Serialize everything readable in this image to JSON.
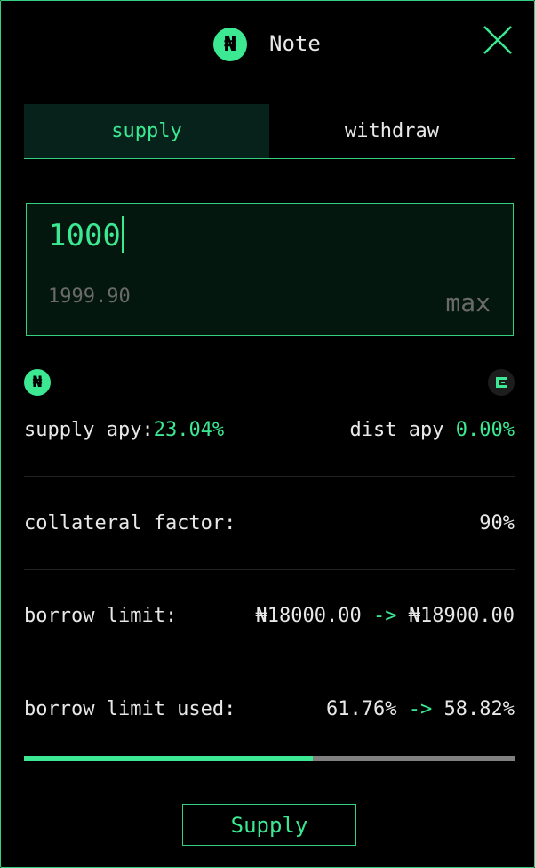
{
  "header": {
    "title": "Note",
    "token_symbol": "₦",
    "close_icon": "close-icon"
  },
  "tabs": [
    {
      "label": "supply",
      "active": true
    },
    {
      "label": "withdraw",
      "active": false
    }
  ],
  "amount": {
    "value": "1000",
    "balance": "1999.90",
    "max_label": "max"
  },
  "logos": {
    "token_icon": "note-token-icon",
    "dist_icon": "canto-token-icon"
  },
  "stats": {
    "supply_apy": {
      "label": "supply apy:",
      "value": "23.04%"
    },
    "dist_apy": {
      "label": "dist apy",
      "value": "0.00%"
    },
    "collateral_factor": {
      "label": "collateral factor:",
      "value": "90%"
    },
    "borrow_limit": {
      "label": "borrow limit:",
      "from": "₦18000.00",
      "arrow": "->",
      "to": "₦18900.00"
    },
    "borrow_limit_used": {
      "label": "borrow limit used:",
      "from": "61.76%",
      "arrow": "->",
      "to": "58.82%"
    }
  },
  "progress": {
    "fraction": 0.5882
  },
  "submit": {
    "label": "Supply"
  },
  "colors": {
    "accent": "#3ce892",
    "border": "#35d07f",
    "muted": "#6a6a6a",
    "bg": "#000000"
  }
}
